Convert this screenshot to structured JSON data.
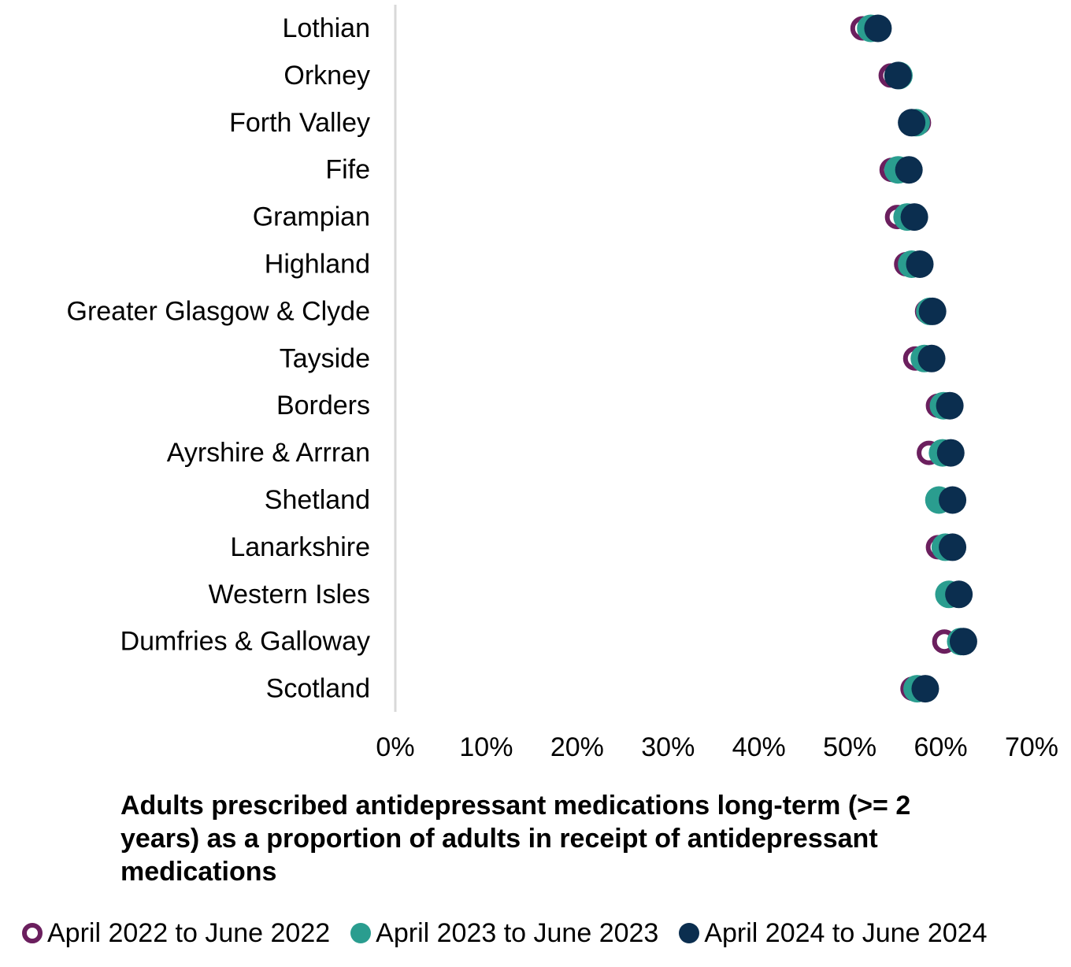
{
  "chart_data": {
    "type": "scatter",
    "orientation": "horizontal-dot-plot",
    "categories": [
      "Lothian",
      "Orkney",
      "Forth Valley",
      "Fife",
      "Grampian",
      "Highland",
      "Greater Glasgow & Clyde",
      "Tayside",
      "Borders",
      "Ayrshire & Arrran",
      "Shetland",
      "Lanarkshire",
      "Western Isles",
      "Dumfries & Galloway",
      "Scotland"
    ],
    "series": [
      {
        "name": "April 2022 to June 2022",
        "color": "#6B1F5E",
        "marker": "hollow-circle",
        "values": [
          51.4,
          54.5,
          57.6,
          54.6,
          55.2,
          56.2,
          58.5,
          57.2,
          59.7,
          58.7,
          61.4,
          59.7,
          61.0,
          60.4,
          56.9
        ]
      },
      {
        "name": "April 2023 to June 2023",
        "color": "#2A9D8F",
        "marker": "filled-circle",
        "values": [
          52.3,
          55.4,
          57.3,
          55.3,
          56.3,
          56.8,
          58.8,
          58.2,
          60.3,
          60.2,
          59.8,
          60.5,
          60.9,
          62.2,
          57.4
        ]
      },
      {
        "name": "April 2024 to June 2024",
        "color": "#0B2E4F",
        "marker": "filled-circle",
        "values": [
          53.1,
          55.3,
          56.8,
          56.5,
          57.1,
          57.7,
          59.1,
          59.0,
          61.0,
          61.1,
          61.3,
          61.3,
          62.0,
          62.5,
          58.3
        ]
      }
    ],
    "xlim": [
      0,
      70
    ],
    "xticks": [
      "0%",
      "10%",
      "20%",
      "30%",
      "40%",
      "50%",
      "60%",
      "70%"
    ],
    "title": "",
    "xlabel": "Adults prescribed antidepressant medications long-term (>= 2 years) as a proportion of adults in receipt of antidepressant medications",
    "ylabel": "",
    "grid": false,
    "legend_position": "bottom"
  }
}
